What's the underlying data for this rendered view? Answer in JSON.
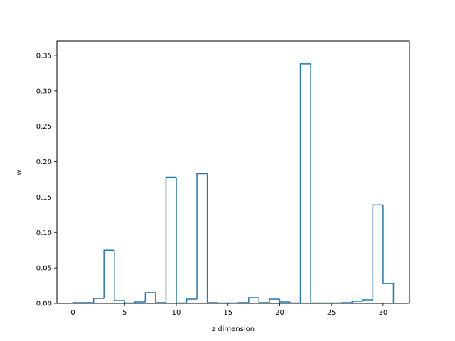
{
  "chart_data": {
    "type": "bar",
    "style": "step-histogram",
    "title": "",
    "xlabel": "z dimension",
    "ylabel": "w",
    "xlim": [
      -1.55,
      32.55
    ],
    "ylim": [
      0,
      0.37
    ],
    "xticks": [
      0,
      5,
      10,
      15,
      20,
      25,
      30
    ],
    "yticks": [
      0.0,
      0.05,
      0.1,
      0.15,
      0.2,
      0.25,
      0.3,
      0.35
    ],
    "grid": false,
    "legend": "none",
    "color": "#1f77b4",
    "categories": [
      0,
      1,
      2,
      3,
      4,
      5,
      6,
      7,
      8,
      9,
      10,
      11,
      12,
      13,
      14,
      15,
      16,
      17,
      18,
      19,
      20,
      21,
      22,
      23,
      24,
      25,
      26,
      27,
      28,
      29,
      30
    ],
    "values": [
      0.001,
      0.001,
      0.007,
      0.075,
      0.004,
      0.0005,
      0.002,
      0.015,
      0.001,
      0.178,
      0.0005,
      0.006,
      0.183,
      0.001,
      0.0005,
      0.0005,
      0.001,
      0.008,
      0.001,
      0.006,
      0.002,
      0.0005,
      0.338,
      0.0005,
      0.0005,
      0.0005,
      0.001,
      0.003,
      0.005,
      0.139,
      0.028
    ]
  }
}
